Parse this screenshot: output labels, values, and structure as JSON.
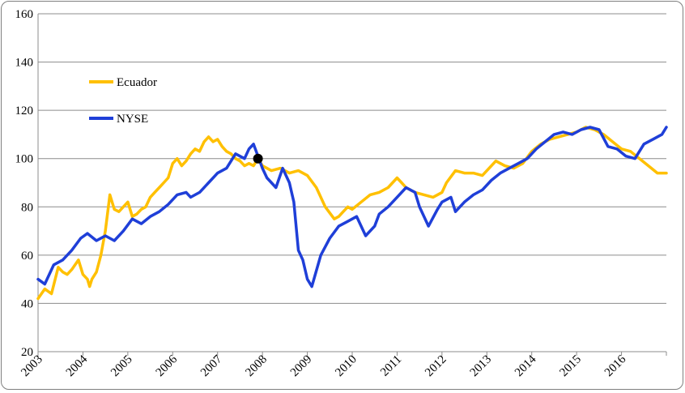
{
  "chart_data": {
    "type": "line",
    "title": "",
    "xlabel": "",
    "ylabel": "",
    "ylim": [
      20,
      160
    ],
    "yticks": [
      20,
      40,
      60,
      80,
      100,
      120,
      140,
      160
    ],
    "xlim": [
      2003,
      2017
    ],
    "xticks": [
      "2003",
      "2004",
      "2005",
      "2006",
      "2007",
      "2008",
      "2009",
      "2010",
      "2011",
      "2012",
      "2013",
      "2014",
      "2015",
      "2016"
    ],
    "grid": "horizontal",
    "legend_position": "upper-left",
    "marker": {
      "x": 2007.9,
      "y": 100,
      "color": "#000000"
    },
    "series": [
      {
        "name": "Ecuador",
        "color": "#FFC000",
        "x": [
          2003.0,
          2003.15,
          2003.3,
          2003.45,
          2003.55,
          2003.65,
          2003.75,
          2003.9,
          2004.0,
          2004.1,
          2004.15,
          2004.2,
          2004.3,
          2004.4,
          2004.5,
          2004.6,
          2004.7,
          2004.8,
          2004.9,
          2005.0,
          2005.1,
          2005.2,
          2005.3,
          2005.4,
          2005.5,
          2005.6,
          2005.7,
          2005.8,
          2005.9,
          2006.0,
          2006.1,
          2006.2,
          2006.3,
          2006.4,
          2006.5,
          2006.6,
          2006.7,
          2006.8,
          2006.9,
          2007.0,
          2007.1,
          2007.2,
          2007.3,
          2007.4,
          2007.5,
          2007.6,
          2007.7,
          2007.8,
          2007.9,
          2008.0,
          2008.2,
          2008.4,
          2008.6,
          2008.8,
          2009.0,
          2009.2,
          2009.4,
          2009.6,
          2009.7,
          2009.8,
          2009.9,
          2010.0,
          2010.2,
          2010.4,
          2010.6,
          2010.8,
          2011.0,
          2011.1,
          2011.2,
          2011.4,
          2011.6,
          2011.8,
          2012.0,
          2012.1,
          2012.3,
          2012.5,
          2012.7,
          2012.9,
          2013.0,
          2013.2,
          2013.4,
          2013.6,
          2013.8,
          2014.0,
          2014.2,
          2014.4,
          2014.6,
          2014.8,
          2015.0,
          2015.2,
          2015.4,
          2015.6,
          2015.8,
          2016.0,
          2016.2,
          2016.4,
          2016.6,
          2016.8,
          2017.0
        ],
        "values": [
          42,
          46,
          44,
          55,
          53,
          52,
          54,
          58,
          52,
          50,
          47,
          50,
          53,
          60,
          70,
          85,
          79,
          78,
          80,
          82,
          76,
          77,
          79,
          80,
          84,
          86,
          88,
          90,
          92,
          98,
          100,
          97,
          99,
          102,
          104,
          103,
          107,
          109,
          107,
          108,
          105,
          103,
          102,
          100,
          99,
          97,
          98,
          97,
          100,
          97,
          95,
          96,
          94,
          95,
          93,
          88,
          80,
          75,
          76,
          78,
          80,
          79,
          82,
          85,
          86,
          88,
          92,
          90,
          88,
          86,
          85,
          84,
          86,
          90,
          95,
          94,
          94,
          93,
          95,
          99,
          97,
          96,
          98,
          103,
          106,
          108,
          109,
          110,
          111,
          113,
          112,
          110,
          107,
          104,
          103,
          100,
          97,
          94,
          94
        ]
      },
      {
        "name": "NYSE",
        "color": "#1F3FD8",
        "x": [
          2003.0,
          2003.15,
          2003.35,
          2003.55,
          2003.75,
          2003.95,
          2004.1,
          2004.3,
          2004.5,
          2004.7,
          2004.9,
          2005.1,
          2005.3,
          2005.5,
          2005.7,
          2005.9,
          2006.1,
          2006.3,
          2006.4,
          2006.6,
          2006.8,
          2007.0,
          2007.2,
          2007.4,
          2007.6,
          2007.7,
          2007.8,
          2007.9,
          2008.0,
          2008.1,
          2008.3,
          2008.45,
          2008.6,
          2008.7,
          2008.8,
          2008.9,
          2009.0,
          2009.1,
          2009.3,
          2009.5,
          2009.7,
          2009.9,
          2010.1,
          2010.3,
          2010.5,
          2010.6,
          2010.8,
          2011.0,
          2011.2,
          2011.4,
          2011.5,
          2011.7,
          2011.9,
          2012.0,
          2012.2,
          2012.3,
          2012.5,
          2012.7,
          2012.9,
          2013.1,
          2013.3,
          2013.5,
          2013.7,
          2013.9,
          2014.1,
          2014.3,
          2014.5,
          2014.7,
          2014.9,
          2015.1,
          2015.3,
          2015.5,
          2015.7,
          2015.9,
          2016.1,
          2016.3,
          2016.5,
          2016.7,
          2016.9,
          2017.0
        ],
        "values": [
          50,
          48,
          56,
          58,
          62,
          67,
          69,
          66,
          68,
          66,
          70,
          75,
          73,
          76,
          78,
          81,
          85,
          86,
          84,
          86,
          90,
          94,
          96,
          102,
          100,
          104,
          106,
          101,
          96,
          92,
          88,
          96,
          90,
          82,
          62,
          58,
          50,
          47,
          60,
          67,
          72,
          74,
          76,
          68,
          72,
          77,
          80,
          84,
          88,
          86,
          80,
          72,
          79,
          82,
          84,
          78,
          82,
          85,
          87,
          91,
          94,
          96,
          98,
          100,
          104,
          107,
          110,
          111,
          110,
          112,
          113,
          112,
          105,
          104,
          101,
          100,
          106,
          108,
          110,
          113
        ]
      }
    ]
  }
}
